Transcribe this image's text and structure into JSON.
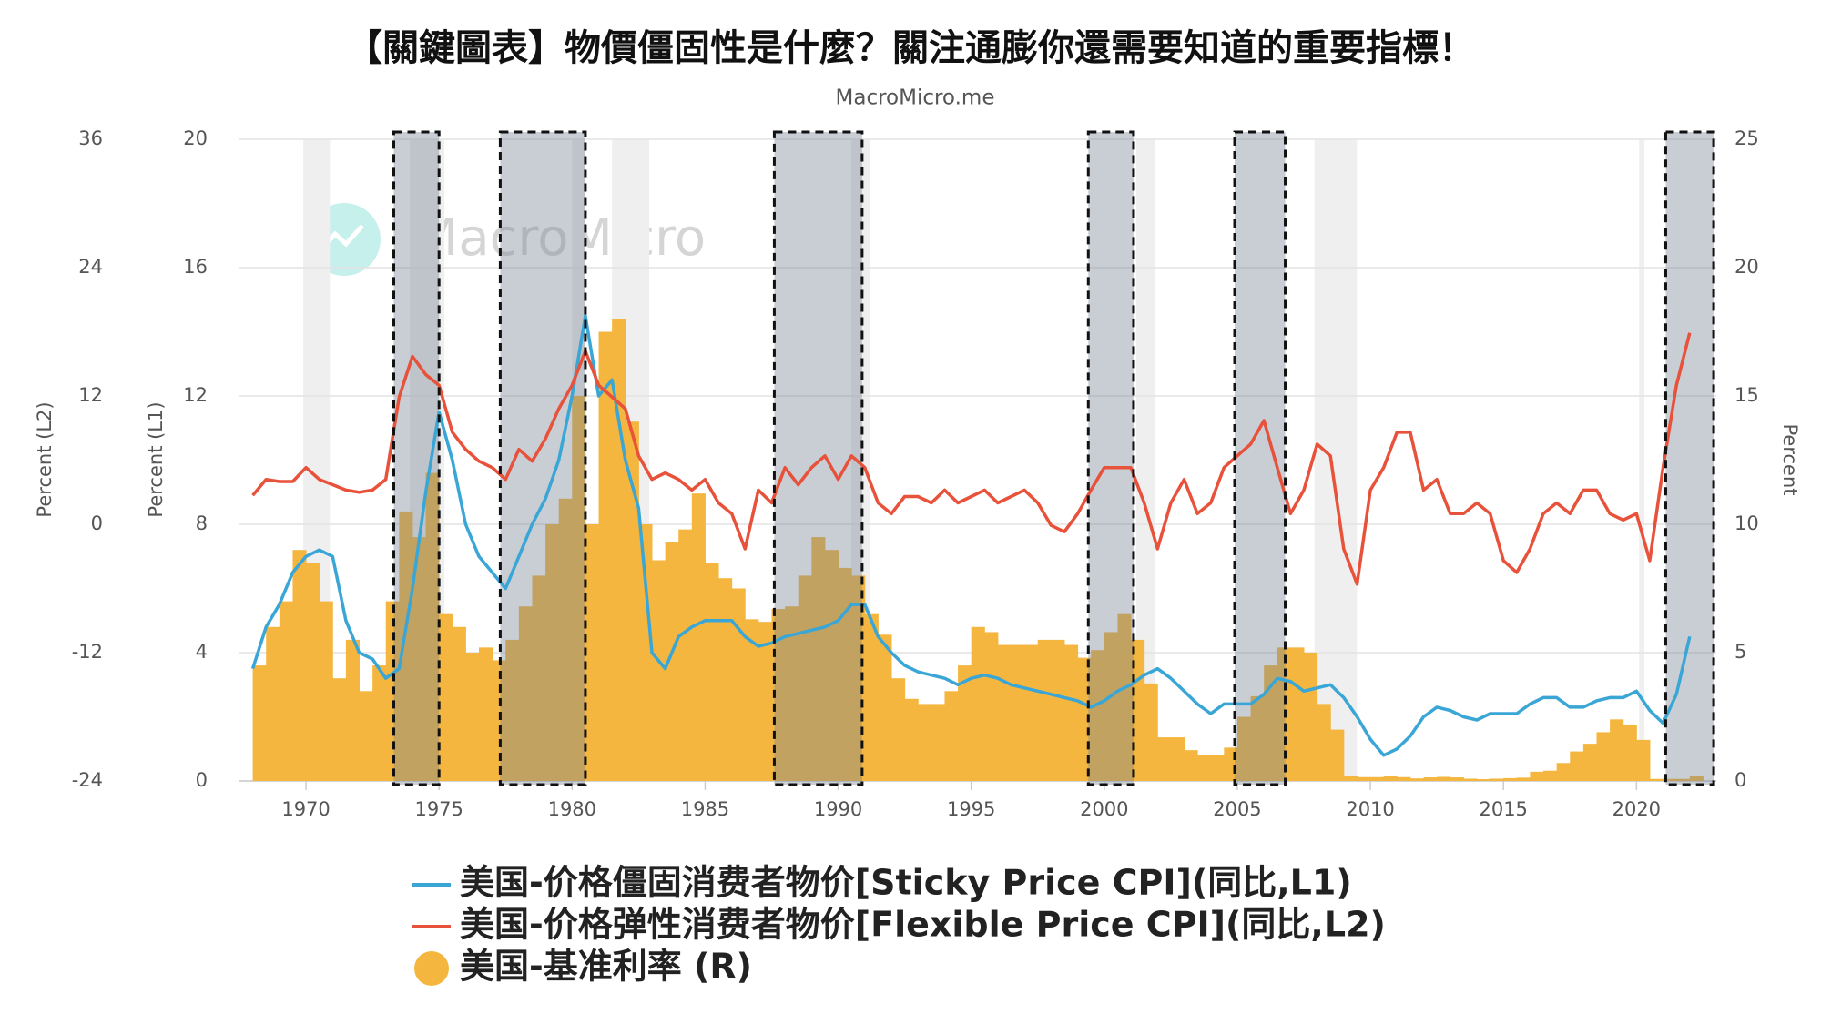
{
  "chart_data": {
    "type": "line",
    "title": "【關鍵圖表】物價僵固性是什麼？關注通膨你還需要知道的重要指標！",
    "subtitle": "MacroMicro.me",
    "watermark": "MacroMicro",
    "y_label": "Percent (L1)",
    "y3_label": "Percent (L2)",
    "y2_label": "Percent",
    "xlim": [
      1967.5,
      2023
    ],
    "xticks": [
      1970,
      1975,
      1980,
      1985,
      1990,
      1995,
      2000,
      2005,
      2010,
      2015,
      2020
    ],
    "ylim": [
      0,
      20
    ],
    "yticks": [
      0,
      4,
      8,
      12,
      16,
      20
    ],
    "y3lim": [
      -24,
      36
    ],
    "y3ticks": [
      -24,
      -12,
      0,
      12,
      24,
      36
    ],
    "y2lim": [
      0,
      25
    ],
    "y2ticks": [
      0,
      5,
      10,
      15,
      20,
      25
    ],
    "grid": true,
    "recessions": [
      [
        1969.9,
        1970.9
      ],
      [
        1973.9,
        1975.2
      ],
      [
        1980.0,
        1980.5
      ],
      [
        1981.5,
        1982.9
      ],
      [
        1990.5,
        1991.2
      ],
      [
        2001.2,
        2001.9
      ],
      [
        2007.9,
        2009.5
      ],
      [
        2020.1,
        2020.3
      ]
    ],
    "highlights": [
      [
        1973.3,
        1975.0
      ],
      [
        1977.3,
        1980.5
      ],
      [
        1987.6,
        1990.9
      ],
      [
        1999.4,
        2001.1
      ],
      [
        2004.9,
        2006.8
      ],
      [
        2021.1,
        2022.9
      ]
    ],
    "x": [
      1968,
      1968.5,
      1969,
      1969.5,
      1970,
      1970.5,
      1971,
      1971.5,
      1972,
      1972.5,
      1973,
      1973.5,
      1974,
      1974.5,
      1975,
      1975.5,
      1976,
      1976.5,
      1977,
      1977.5,
      1978,
      1978.5,
      1979,
      1979.5,
      1980,
      1980.5,
      1981,
      1981.5,
      1982,
      1982.5,
      1983,
      1983.5,
      1984,
      1984.5,
      1985,
      1985.5,
      1986,
      1986.5,
      1987,
      1987.5,
      1988,
      1988.5,
      1989,
      1989.5,
      1990,
      1990.5,
      1991,
      1991.5,
      1992,
      1992.5,
      1993,
      1993.5,
      1994,
      1994.5,
      1995,
      1995.5,
      1996,
      1996.5,
      1997,
      1997.5,
      1998,
      1998.5,
      1999,
      1999.5,
      2000,
      2000.5,
      2001,
      2001.5,
      2002,
      2002.5,
      2003,
      2003.5,
      2004,
      2004.5,
      2005,
      2005.5,
      2006,
      2006.5,
      2007,
      2007.5,
      2008,
      2008.5,
      2009,
      2009.5,
      2010,
      2010.5,
      2011,
      2011.5,
      2012,
      2012.5,
      2013,
      2013.5,
      2014,
      2014.5,
      2015,
      2015.5,
      2016,
      2016.5,
      2017,
      2017.5,
      2018,
      2018.5,
      2019,
      2019.5,
      2020,
      2020.5,
      2021,
      2021.5,
      2022
    ],
    "series": [
      {
        "name": "美国-基准利率 (R)",
        "type": "bar",
        "axis": "y2",
        "color": "#f4b63f",
        "values": [
          4.5,
          6.0,
          7.0,
          9.0,
          8.5,
          7.0,
          4.0,
          5.5,
          3.5,
          4.5,
          7.0,
          10.5,
          9.5,
          12.0,
          6.5,
          6.0,
          5.0,
          5.2,
          4.7,
          5.5,
          6.8,
          8.0,
          10.0,
          11.0,
          15.0,
          10.0,
          17.5,
          18.0,
          14.0,
          10.0,
          8.6,
          9.3,
          9.8,
          11.2,
          8.5,
          7.9,
          7.5,
          6.3,
          6.2,
          6.7,
          6.8,
          8.0,
          9.5,
          9.0,
          8.3,
          8.0,
          6.5,
          5.7,
          4.0,
          3.2,
          3.0,
          3.0,
          3.5,
          4.5,
          6.0,
          5.8,
          5.3,
          5.3,
          5.3,
          5.5,
          5.5,
          5.3,
          4.8,
          5.1,
          5.8,
          6.5,
          5.5,
          3.8,
          1.7,
          1.7,
          1.2,
          1.0,
          1.0,
          1.3,
          2.5,
          3.3,
          4.5,
          5.2,
          5.2,
          5.0,
          3.0,
          2.0,
          0.2,
          0.15,
          0.15,
          0.18,
          0.15,
          0.1,
          0.14,
          0.16,
          0.14,
          0.09,
          0.07,
          0.09,
          0.11,
          0.13,
          0.36,
          0.4,
          0.7,
          1.15,
          1.45,
          1.9,
          2.4,
          2.2,
          1.6,
          0.08,
          0.08,
          0.08,
          0.2
        ]
      },
      {
        "name": "美国-价格僵固消费者物价[Sticky Price CPI](同比,L1)",
        "type": "line",
        "axis": "y",
        "color": "#3aa6d6",
        "values": [
          3.5,
          4.8,
          5.5,
          6.5,
          7.0,
          7.2,
          7.0,
          5.0,
          4.0,
          3.8,
          3.2,
          3.5,
          6.0,
          9.0,
          11.5,
          10.0,
          8.0,
          7.0,
          6.5,
          6.0,
          7.0,
          8.0,
          8.8,
          10.0,
          12.0,
          14.5,
          12.0,
          12.5,
          10.0,
          8.5,
          4.0,
          3.5,
          4.5,
          4.8,
          5.0,
          5.0,
          5.0,
          4.5,
          4.2,
          4.3,
          4.5,
          4.6,
          4.7,
          4.8,
          5.0,
          5.5,
          5.5,
          4.5,
          4.0,
          3.6,
          3.4,
          3.3,
          3.2,
          3.0,
          3.2,
          3.3,
          3.2,
          3.0,
          2.9,
          2.8,
          2.7,
          2.6,
          2.5,
          2.3,
          2.5,
          2.8,
          3.0,
          3.3,
          3.5,
          3.2,
          2.8,
          2.4,
          2.1,
          2.4,
          2.4,
          2.4,
          2.7,
          3.2,
          3.1,
          2.8,
          2.9,
          3.0,
          2.6,
          2.0,
          1.3,
          0.8,
          1.0,
          1.4,
          2.0,
          2.3,
          2.2,
          2.0,
          1.9,
          2.1,
          2.1,
          2.1,
          2.4,
          2.6,
          2.6,
          2.3,
          2.3,
          2.5,
          2.6,
          2.6,
          2.8,
          2.2,
          1.8,
          2.7,
          4.5
        ]
      },
      {
        "name": "美国-价格弹性消费者物价[Flexible Price CPI](同比,L2)",
        "type": "line",
        "axis": "y3",
        "color": "#e8513a",
        "values": [
          2.7,
          4.2,
          4,
          4,
          5.3,
          4.2,
          3.7,
          3.2,
          3,
          3.2,
          4.2,
          11.9,
          15.7,
          14,
          13,
          8.6,
          7,
          5.9,
          5.3,
          4.2,
          7,
          5.9,
          8,
          10.8,
          13,
          16.2,
          13,
          11.9,
          10.8,
          6.4,
          4.2,
          4.8,
          4.2,
          3.2,
          4.2,
          2,
          1,
          -2.3,
          3.2,
          2,
          5.3,
          3.7,
          5.3,
          6.4,
          4.2,
          6.4,
          5.3,
          2,
          1,
          2.6,
          2.6,
          2,
          3.2,
          2,
          2.6,
          3.2,
          2,
          2.6,
          3.2,
          2,
          -0.1,
          -0.7,
          1,
          3.2,
          5.3,
          5.3,
          5.3,
          2,
          -2.3,
          2,
          4.2,
          1,
          2,
          5.3,
          6.4,
          7.5,
          9.7,
          5.3,
          1,
          3.2,
          7.5,
          6.4,
          -2.3,
          -5.6,
          3.2,
          5.3,
          8.6,
          8.6,
          3.2,
          4.2,
          1,
          1,
          2,
          1,
          -3.4,
          -4.5,
          -2.3,
          1,
          2,
          1,
          3.2,
          3.2,
          1,
          0.4,
          1,
          -3.4,
          5.3,
          13,
          17.9
        ]
      }
    ]
  }
}
